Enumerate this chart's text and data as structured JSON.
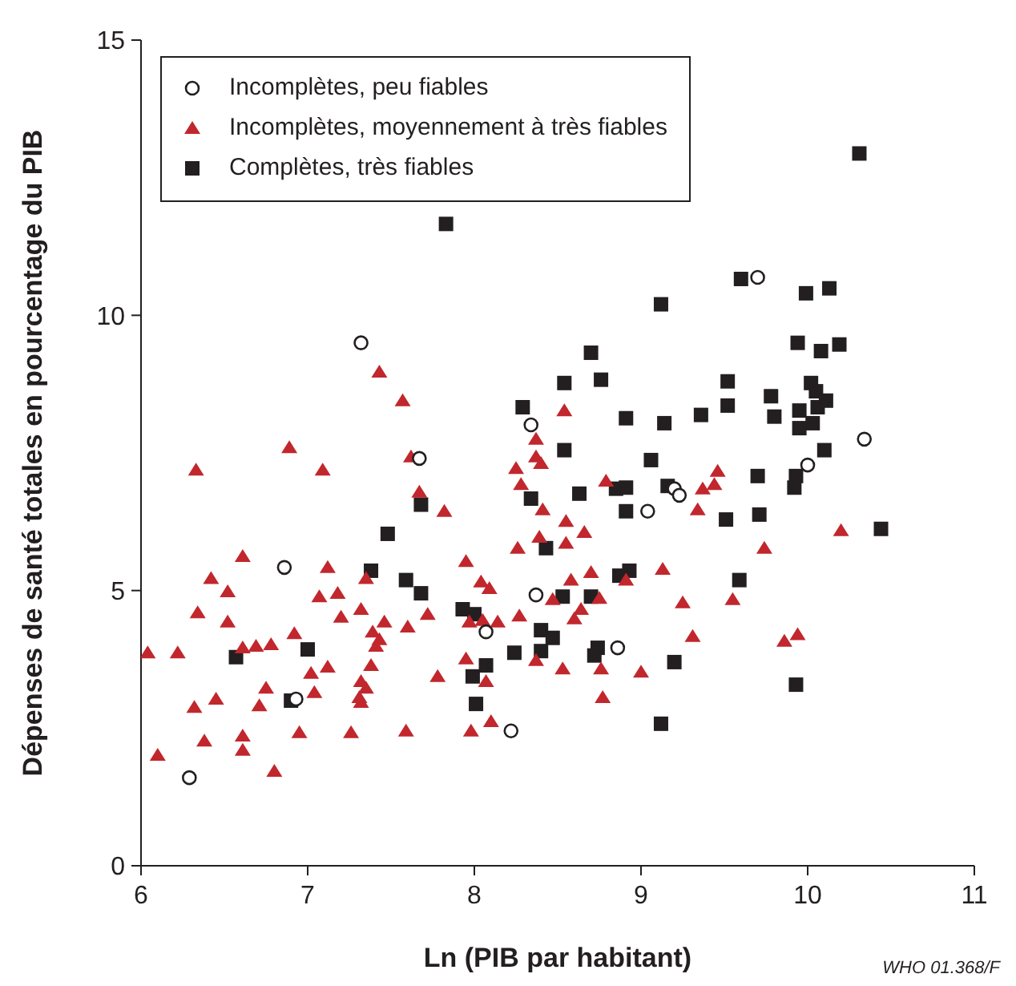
{
  "chart_data": {
    "type": "scatter",
    "xlabel": "Ln (PIB par habitant)",
    "ylabel": "Dépenses de santé totales en pourcentage du PIB",
    "xlim": [
      6,
      11
    ],
    "xticks": [
      6,
      7,
      8,
      9,
      10,
      11
    ],
    "ylim": [
      0,
      15
    ],
    "yticks": [
      0,
      5,
      10,
      15
    ],
    "grid": false,
    "legend": "top left",
    "annotations": [
      "WHO 01.368/F"
    ],
    "series": [
      {
        "name": "Incomplètes, peu fiables",
        "color": "#231f20",
        "marker": "circle",
        "x": [
          7.32,
          7.67,
          6.86,
          6.93,
          6.29,
          8.34,
          8.07,
          8.37,
          8.22,
          8.86,
          9.04,
          9.2,
          9.23,
          9.7,
          10.0,
          10.34
        ],
        "values": [
          9.5,
          7.4,
          5.42,
          3.03,
          1.6,
          8.01,
          4.25,
          4.92,
          2.45,
          3.96,
          6.44,
          6.85,
          6.73,
          10.69,
          7.28,
          7.75
        ]
      },
      {
        "name": "Incomplètes, moyennement à très fiables",
        "color": "#c1272d",
        "marker": "triangle",
        "x": [
          7.43,
          7.57,
          6.89,
          6.33,
          7.09,
          7.62,
          7.67,
          6.61,
          7.12,
          6.42,
          6.52,
          7.07,
          7.18,
          6.34,
          6.52,
          7.2,
          7.32,
          7.35,
          7.46,
          7.6,
          6.92,
          7.39,
          7.43,
          7.41,
          6.04,
          6.22,
          6.61,
          6.69,
          6.78,
          7.38,
          7.02,
          7.12,
          7.32,
          7.35,
          6.75,
          7.04,
          7.31,
          7.32,
          6.45,
          6.32,
          6.71,
          6.38,
          6.61,
          6.61,
          6.95,
          7.26,
          7.59,
          6.1,
          6.8,
          7.82,
          8.28,
          8.41,
          8.55,
          8.26,
          8.39,
          8.55,
          7.95,
          8.04,
          8.09,
          8.58,
          8.47,
          8.27,
          8.14,
          7.97,
          8.6,
          7.72,
          7.95,
          8.07,
          7.78,
          8.53,
          8.37,
          8.1,
          7.98,
          8.54,
          8.37,
          8.37,
          8.4,
          8.25,
          8.79,
          9.37,
          9.34,
          8.66,
          8.7,
          8.91,
          9.13,
          8.75,
          9.25,
          8.64,
          8.05,
          9.31,
          8.76,
          9.0,
          9.46,
          9.44,
          9.74,
          10.2,
          9.55,
          9.86,
          9.94,
          8.77
        ],
        "values": [
          8.97,
          8.45,
          7.6,
          7.19,
          7.19,
          7.43,
          6.79,
          5.62,
          5.42,
          5.22,
          4.98,
          4.89,
          4.95,
          4.6,
          4.43,
          4.52,
          4.66,
          5.22,
          4.43,
          4.34,
          4.22,
          4.25,
          4.11,
          3.99,
          3.87,
          3.87,
          3.96,
          3.99,
          4.02,
          3.64,
          3.5,
          3.61,
          3.35,
          3.23,
          3.23,
          3.15,
          3.06,
          2.97,
          3.03,
          2.88,
          2.91,
          2.27,
          2.36,
          2.1,
          2.42,
          2.42,
          2.45,
          2.01,
          1.72,
          6.44,
          6.93,
          6.47,
          6.26,
          5.77,
          5.97,
          5.86,
          5.53,
          5.16,
          5.04,
          5.19,
          4.84,
          4.54,
          4.43,
          4.43,
          4.49,
          4.57,
          3.76,
          3.35,
          3.44,
          3.58,
          3.73,
          2.62,
          2.45,
          8.27,
          7.75,
          7.43,
          7.31,
          7.22,
          6.99,
          6.85,
          6.47,
          6.06,
          5.33,
          5.19,
          5.39,
          4.86,
          4.78,
          4.66,
          4.46,
          4.17,
          3.58,
          3.52,
          7.17,
          6.93,
          5.77,
          6.09,
          4.84,
          4.08,
          4.2,
          3.06
        ]
      },
      {
        "name": "Complètes, très fiables",
        "color": "#231f20",
        "marker": "square",
        "x": [
          7.83,
          10.31,
          9.12,
          9.6,
          9.99,
          10.13,
          8.7,
          8.76,
          9.94,
          10.08,
          10.19,
          9.52,
          9.78,
          10.02,
          10.05,
          10.11,
          9.52,
          9.95,
          10.06,
          8.91,
          9.14,
          9.36,
          9.8,
          9.95,
          10.03,
          10.1,
          9.06,
          9.7,
          9.93,
          9.92,
          8.85,
          8.91,
          9.16,
          8.63,
          8.91,
          9.51,
          9.71,
          10.44,
          8.87,
          8.93,
          9.59,
          8.7,
          8.74,
          8.72,
          9.2,
          9.93,
          8.54,
          8.29,
          8.54,
          8.34,
          7.68,
          8.43,
          7.68,
          7.93,
          8.0,
          8.53,
          8.4,
          8.47,
          8.24,
          8.4,
          8.07,
          7.48,
          7.38,
          7.59,
          7.0,
          7.99,
          8.01,
          6.9,
          6.57,
          9.12
        ],
        "values": [
          11.66,
          12.94,
          10.2,
          10.66,
          10.4,
          10.49,
          9.32,
          8.83,
          9.5,
          9.35,
          9.47,
          8.8,
          8.53,
          8.77,
          8.62,
          8.45,
          8.36,
          8.27,
          8.33,
          8.13,
          8.04,
          8.19,
          8.16,
          7.95,
          8.04,
          7.55,
          7.37,
          7.08,
          7.08,
          6.87,
          6.85,
          6.87,
          6.9,
          6.76,
          6.44,
          6.29,
          6.38,
          6.12,
          5.27,
          5.36,
          5.19,
          4.89,
          3.96,
          3.82,
          3.7,
          3.29,
          8.77,
          8.33,
          7.55,
          6.67,
          6.56,
          5.77,
          4.95,
          4.66,
          4.57,
          4.89,
          4.28,
          4.14,
          3.87,
          3.9,
          3.64,
          6.03,
          5.36,
          5.19,
          3.93,
          3.44,
          2.94,
          3.0,
          3.79,
          2.58
        ]
      }
    ]
  }
}
